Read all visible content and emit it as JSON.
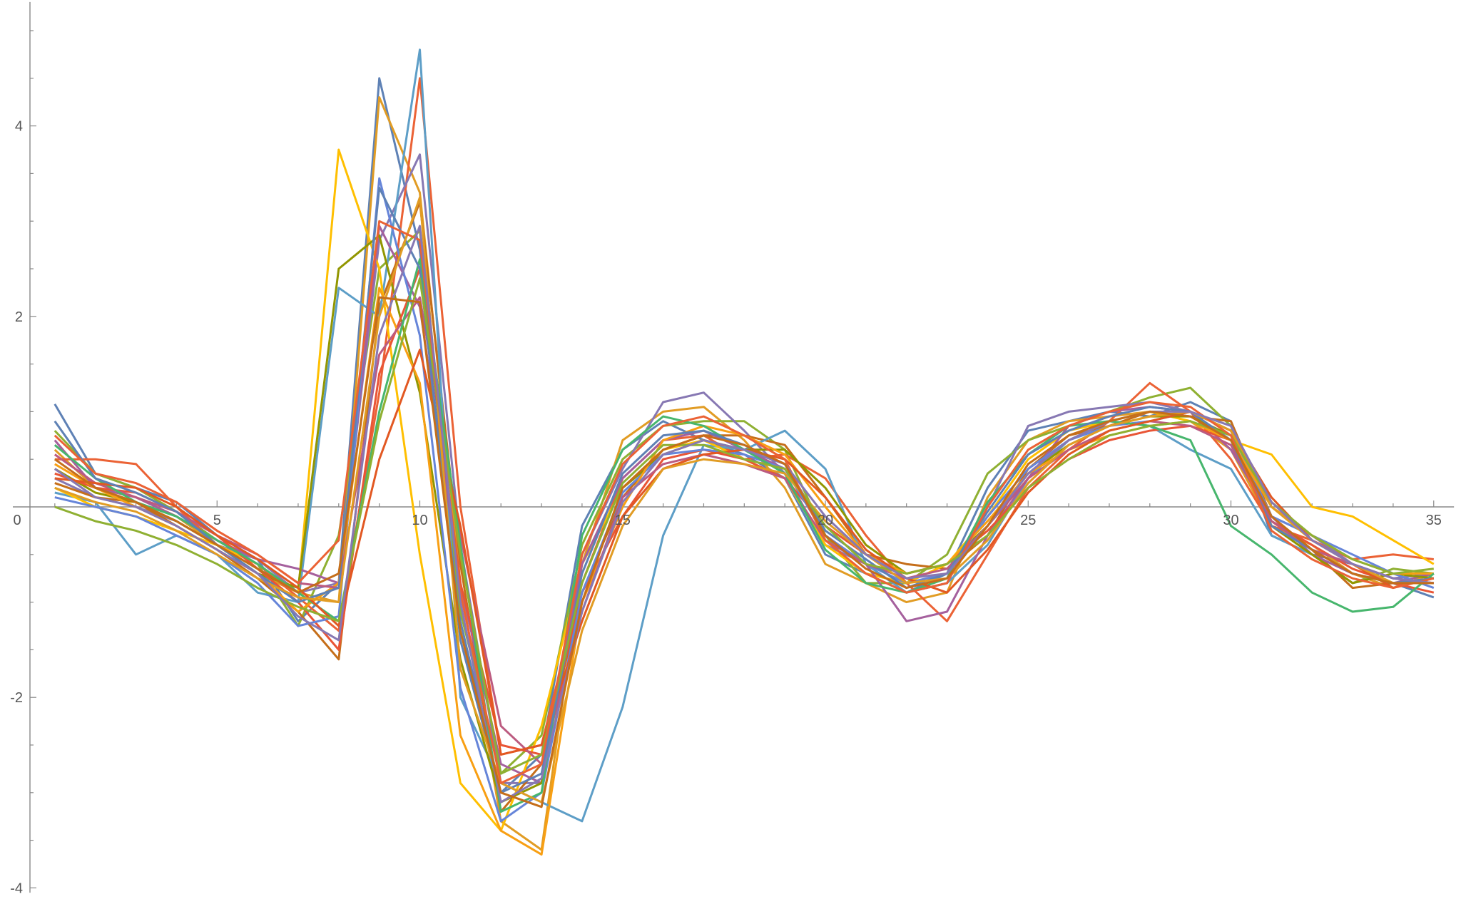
{
  "chart_data": {
    "type": "line",
    "title": "",
    "xlabel": "",
    "ylabel": "",
    "xlim": [
      0,
      35.5
    ],
    "ylim": [
      -4.05,
      5.3
    ],
    "x_ticks": [
      0,
      5,
      10,
      15,
      20,
      25,
      30,
      35
    ],
    "x_tick_labels": [
      "0",
      "5",
      "10",
      "15",
      "20",
      "25",
      "30",
      "35"
    ],
    "y_ticks": [
      -4,
      -2,
      2,
      4
    ],
    "y_tick_labels": [
      "-4",
      "-2",
      "2",
      "4"
    ],
    "grid": false,
    "legend": "none",
    "palette": [
      "#5E81B5",
      "#E19C24",
      "#8FB032",
      "#EB6235",
      "#8778B3",
      "#C56E1A",
      "#5D9EC7",
      "#FFBF00",
      "#A5609D",
      "#929600",
      "#E95536",
      "#6685D9",
      "#F89F13",
      "#BC5B80",
      "#47B66D",
      "#E25822"
    ],
    "x": [
      1,
      2,
      3,
      4,
      5,
      6,
      7,
      8,
      9,
      10,
      11,
      12,
      13,
      14,
      15,
      16,
      17,
      18,
      19,
      20,
      21,
      22,
      23,
      24,
      25,
      26,
      27,
      28,
      29,
      30,
      31,
      32,
      33,
      34,
      35
    ],
    "series": [
      {
        "values": [
          1.08,
          0.35,
          0.2,
          0.05,
          -0.3,
          -0.55,
          -1.2,
          -0.8,
          4.5,
          2.7,
          -1.2,
          -3.0,
          -2.6,
          -0.2,
          0.6,
          0.9,
          0.7,
          0.55,
          0.3,
          -0.5,
          -0.7,
          -0.9,
          -0.7,
          0.2,
          0.8,
          0.9,
          1.0,
          0.95,
          1.1,
          0.9,
          -0.3,
          -0.5,
          -0.6,
          -0.8,
          -0.95
        ]
      },
      {
        "values": [
          0.6,
          0.2,
          0.1,
          -0.1,
          -0.4,
          -0.7,
          -0.9,
          -1.0,
          4.3,
          3.3,
          -0.8,
          -3.3,
          -3.6,
          -0.6,
          0.7,
          1.0,
          1.05,
          0.7,
          0.2,
          -0.6,
          -0.8,
          -1.0,
          -0.9,
          0.1,
          0.7,
          0.9,
          0.95,
          1.0,
          0.9,
          0.6,
          -0.2,
          -0.4,
          -0.7,
          -0.85,
          -0.7
        ]
      },
      {
        "values": [
          0.8,
          0.35,
          0.2,
          -0.05,
          -0.35,
          -0.6,
          -1.25,
          -0.3,
          2.5,
          2.9,
          -1.1,
          -2.8,
          -2.4,
          -0.4,
          0.5,
          0.85,
          0.9,
          0.9,
          0.6,
          -0.3,
          -0.8,
          -0.8,
          -0.5,
          0.35,
          0.7,
          0.85,
          1.0,
          1.15,
          1.25,
          0.85,
          -0.2,
          -0.5,
          -0.8,
          -0.65,
          -0.7
        ]
      },
      {
        "values": [
          0.5,
          0.5,
          0.45,
          0.0,
          -0.4,
          -0.6,
          -0.95,
          -1.3,
          1.2,
          4.5,
          0.0,
          -2.6,
          -2.5,
          -0.8,
          0.3,
          0.7,
          0.75,
          0.5,
          0.55,
          0.3,
          -0.3,
          -0.8,
          -1.2,
          -0.5,
          0.2,
          0.6,
          0.9,
          1.3,
          1.0,
          0.5,
          -0.2,
          -0.35,
          -0.55,
          -0.5,
          -0.55
        ]
      },
      {
        "values": [
          0.3,
          0.1,
          0.0,
          -0.15,
          -0.4,
          -0.55,
          -0.9,
          -0.8,
          2.8,
          3.7,
          -0.4,
          -2.9,
          -2.9,
          -0.5,
          0.4,
          1.1,
          1.2,
          0.8,
          0.35,
          -0.4,
          -0.6,
          -0.9,
          -0.8,
          0.0,
          0.85,
          1.0,
          1.05,
          1.1,
          1.0,
          0.8,
          -0.1,
          -0.3,
          -0.6,
          -0.75,
          -0.7
        ]
      },
      {
        "values": [
          0.25,
          0.1,
          0.05,
          -0.2,
          -0.45,
          -0.75,
          -1.1,
          -1.6,
          2.1,
          3.2,
          -0.6,
          -3.2,
          -2.7,
          -0.9,
          0.1,
          0.6,
          0.75,
          0.75,
          0.65,
          0.1,
          -0.5,
          -0.6,
          -0.65,
          -0.3,
          0.4,
          0.75,
          0.85,
          1.0,
          0.95,
          0.9,
          -0.1,
          -0.45,
          -0.85,
          -0.8,
          -0.75
        ]
      },
      {
        "values": [
          0.15,
          0.05,
          -0.5,
          -0.3,
          -0.5,
          -0.9,
          -1.0,
          2.3,
          2.0,
          4.8,
          -2.0,
          -2.9,
          -3.1,
          -3.3,
          -2.1,
          -0.3,
          0.65,
          0.6,
          0.8,
          0.4,
          -0.6,
          -0.9,
          -0.8,
          -0.4,
          0.3,
          0.7,
          0.9,
          0.85,
          0.6,
          0.4,
          -0.3,
          -0.5,
          -0.7,
          -0.8,
          -0.75
        ]
      },
      {
        "values": [
          0.2,
          0.0,
          -0.1,
          -0.25,
          -0.4,
          -0.6,
          -0.9,
          3.75,
          2.5,
          -0.5,
          -2.9,
          -3.4,
          -2.3,
          -0.6,
          0.2,
          0.6,
          0.7,
          0.5,
          0.3,
          -0.4,
          -0.7,
          -0.8,
          -0.6,
          -0.1,
          0.5,
          0.8,
          0.9,
          1.0,
          0.9,
          0.7,
          0.55,
          0.0,
          -0.1,
          -0.35,
          -0.6
        ]
      },
      {
        "values": [
          0.7,
          0.2,
          0.1,
          -0.1,
          -0.35,
          -0.55,
          -0.65,
          -0.8,
          2.95,
          2.1,
          -0.8,
          -2.7,
          -2.9,
          -0.6,
          0.3,
          0.7,
          0.8,
          0.6,
          0.4,
          -0.3,
          -0.6,
          -1.2,
          -1.1,
          -0.3,
          0.3,
          0.85,
          1.0,
          1.05,
          1.0,
          0.6,
          -0.1,
          -0.5,
          -0.7,
          -0.8,
          -0.7
        ]
      },
      {
        "values": [
          0.4,
          0.15,
          0.05,
          -0.15,
          -0.4,
          -0.7,
          -0.85,
          2.5,
          2.85,
          1.2,
          -1.6,
          -3.1,
          -2.9,
          -1.0,
          0.2,
          0.55,
          0.7,
          0.6,
          0.6,
          0.2,
          -0.4,
          -0.7,
          -0.6,
          -0.2,
          0.35,
          0.65,
          0.85,
          0.95,
          0.95,
          0.75,
          -0.2,
          -0.5,
          -0.8,
          -0.7,
          -0.75
        ]
      },
      {
        "values": [
          0.35,
          0.2,
          0.15,
          -0.05,
          -0.3,
          -0.65,
          -1.0,
          -1.5,
          1.4,
          2.5,
          -0.8,
          -2.5,
          -2.6,
          -0.9,
          -0.1,
          0.5,
          0.6,
          0.5,
          0.3,
          -0.2,
          -0.5,
          -0.7,
          -0.6,
          -0.25,
          0.2,
          0.5,
          0.7,
          0.8,
          0.85,
          0.7,
          -0.15,
          -0.4,
          -0.65,
          -0.8,
          -0.9
        ]
      },
      {
        "values": [
          0.1,
          0.0,
          -0.1,
          -0.3,
          -0.5,
          -0.8,
          -1.25,
          -1.15,
          3.45,
          1.8,
          -1.9,
          -3.3,
          -3.0,
          -0.9,
          0.15,
          0.55,
          0.6,
          0.55,
          0.4,
          -0.3,
          -0.6,
          -0.8,
          -0.7,
          -0.1,
          0.4,
          0.7,
          0.85,
          0.9,
          1.0,
          0.8,
          -0.1,
          -0.3,
          -0.5,
          -0.7,
          -0.85
        ]
      },
      {
        "values": [
          0.45,
          0.2,
          0.0,
          -0.2,
          -0.45,
          -0.7,
          -1.1,
          -0.8,
          2.3,
          1.3,
          -2.4,
          -3.4,
          -3.65,
          -1.0,
          0.0,
          0.7,
          0.85,
          0.75,
          0.55,
          0.0,
          -0.5,
          -0.7,
          -0.6,
          -0.15,
          0.35,
          0.6,
          0.75,
          0.85,
          0.9,
          0.7,
          0.0,
          -0.3,
          -0.55,
          -0.7,
          -0.7
        ]
      },
      {
        "values": [
          0.55,
          0.25,
          0.1,
          -0.05,
          -0.3,
          -0.5,
          -0.8,
          -0.85,
          1.6,
          2.2,
          -0.3,
          -2.3,
          -2.7,
          -1.1,
          0.1,
          0.45,
          0.55,
          0.45,
          0.3,
          -0.35,
          -0.6,
          -0.75,
          -0.65,
          -0.2,
          0.3,
          0.6,
          0.8,
          0.9,
          0.85,
          0.65,
          -0.15,
          -0.45,
          -0.6,
          -0.75,
          -0.8
        ]
      },
      {
        "values": [
          0.65,
          0.3,
          0.05,
          -0.1,
          -0.35,
          -0.6,
          -0.9,
          -1.2,
          1.0,
          2.6,
          -0.4,
          -3.2,
          -3.0,
          -0.3,
          0.6,
          0.95,
          0.85,
          0.6,
          0.35,
          -0.45,
          -0.8,
          -0.9,
          -0.75,
          0.05,
          0.55,
          0.85,
          0.9,
          0.85,
          0.7,
          -0.2,
          -0.5,
          -0.9,
          -1.1,
          -1.05,
          -0.7
        ]
      },
      {
        "values": [
          0.3,
          0.25,
          0.2,
          0.0,
          -0.3,
          -0.55,
          -0.85,
          -1.25,
          0.5,
          1.65,
          -0.2,
          -2.6,
          -2.5,
          -1.2,
          -0.1,
          0.4,
          0.55,
          0.6,
          0.5,
          0.1,
          -0.45,
          -0.75,
          -0.9,
          -0.45,
          0.15,
          0.55,
          0.8,
          0.9,
          1.0,
          0.8,
          0.1,
          -0.35,
          -0.6,
          -0.85,
          -0.75
        ]
      },
      {
        "values": [
          0.9,
          0.3,
          0.15,
          -0.05,
          -0.4,
          -0.7,
          -1.0,
          -0.85,
          3.35,
          2.5,
          -1.4,
          -3.0,
          -2.8,
          -0.7,
          0.35,
          0.75,
          0.8,
          0.65,
          0.45,
          -0.25,
          -0.55,
          -0.85,
          -0.7,
          -0.05,
          0.55,
          0.8,
          0.95,
          1.05,
          1.0,
          0.7,
          -0.2,
          -0.45,
          -0.7,
          -0.8,
          -0.75
        ]
      },
      {
        "values": [
          0.2,
          0.05,
          -0.05,
          -0.25,
          -0.5,
          -0.75,
          -0.95,
          -1.0,
          2.0,
          3.25,
          -1.7,
          -2.9,
          -3.1,
          -1.3,
          -0.2,
          0.4,
          0.5,
          0.45,
          0.35,
          -0.15,
          -0.5,
          -0.8,
          -0.75,
          -0.35,
          0.25,
          0.65,
          0.85,
          0.95,
          1.0,
          0.8,
          0.0,
          -0.35,
          -0.6,
          -0.8,
          -0.8
        ]
      },
      {
        "values": [
          0.0,
          -0.15,
          -0.25,
          -0.4,
          -0.6,
          -0.85,
          -1.05,
          -1.2,
          0.9,
          2.4,
          -0.5,
          -2.8,
          -2.6,
          -0.8,
          0.25,
          0.65,
          0.65,
          0.5,
          0.4,
          -0.2,
          -0.6,
          -0.7,
          -0.6,
          -0.3,
          0.2,
          0.5,
          0.75,
          0.85,
          0.9,
          0.75,
          0.05,
          -0.3,
          -0.55,
          -0.7,
          -0.65
        ]
      },
      {
        "values": [
          0.75,
          0.35,
          0.25,
          0.05,
          -0.25,
          -0.5,
          -0.8,
          -0.35,
          3.0,
          2.8,
          -0.9,
          -2.9,
          -2.7,
          -0.5,
          0.45,
          0.85,
          0.95,
          0.75,
          0.5,
          -0.35,
          -0.7,
          -0.9,
          -0.8,
          0.0,
          0.6,
          0.85,
          1.0,
          1.1,
          1.05,
          0.75,
          -0.25,
          -0.55,
          -0.75,
          -0.85,
          -0.75
        ]
      },
      {
        "values": [
          0.4,
          0.1,
          0.0,
          -0.2,
          -0.45,
          -0.7,
          -1.15,
          -1.4,
          1.8,
          2.95,
          -1.0,
          -3.1,
          -2.85,
          -1.1,
          0.05,
          0.55,
          0.7,
          0.6,
          0.45,
          -0.1,
          -0.5,
          -0.75,
          -0.7,
          -0.2,
          0.35,
          0.7,
          0.9,
          1.0,
          1.0,
          0.85,
          0.05,
          -0.35,
          -0.6,
          -0.75,
          -0.8
        ]
      },
      {
        "values": [
          0.5,
          0.2,
          0.05,
          -0.15,
          -0.4,
          -0.65,
          -0.9,
          -0.7,
          2.2,
          2.15,
          -1.3,
          -3.0,
          -3.15,
          -1.0,
          0.2,
          0.6,
          0.75,
          0.65,
          0.45,
          -0.3,
          -0.65,
          -0.85,
          -0.75,
          -0.2,
          0.45,
          0.75,
          0.9,
          1.0,
          0.95,
          0.7,
          -0.1,
          -0.45,
          -0.7,
          -0.8,
          -0.8
        ]
      }
    ]
  }
}
